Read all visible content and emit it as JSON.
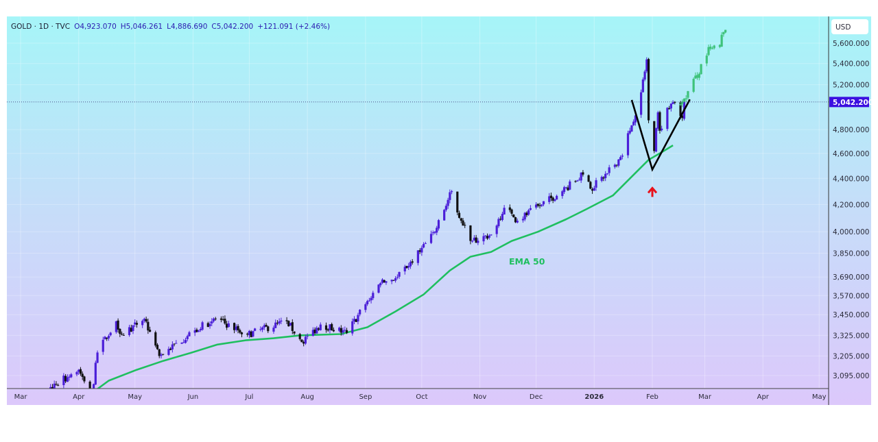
{
  "header": {
    "symbol": "GOLD · 1D · TVC",
    "open": "O4,923.070",
    "high": "H5,046.261",
    "low": "L4,886.690",
    "close": "C5,042.200",
    "change": "+121.091 (+2.46%)"
  },
  "currency_label": "USD",
  "colors": {
    "up": "#4b1fd8",
    "down": "#111111",
    "ema": "#1fbf5f",
    "projection": "#3ec27a",
    "last_price_bg": "#3b0fe0",
    "arrow": "#e8121c"
  },
  "chart_data": {
    "type": "candlestick",
    "title": "GOLD · 1D · TVC",
    "scale": "log",
    "ylim": [
      3000,
      5800
    ],
    "y_ticks": [
      "5,600.000",
      "5,400.000",
      "5,200.000",
      "4,800.000",
      "4,600.000",
      "4,400.000",
      "4,200.000",
      "4,000.000",
      "3,850.000",
      "3,690.000",
      "3,570.000",
      "3,450.000",
      "3,325.000",
      "3,205.000",
      "3,095.000"
    ],
    "y_tick_values": [
      5600,
      5400,
      5200,
      4800,
      4600,
      4400,
      4200,
      4000,
      3850,
      3690,
      3570,
      3450,
      3325,
      3205,
      3095
    ],
    "x_ticks": [
      {
        "label": "Mar",
        "date": "2025-03-01"
      },
      {
        "label": "Apr",
        "date": "2025-04-01"
      },
      {
        "label": "May",
        "date": "2025-05-01"
      },
      {
        "label": "Jun",
        "date": "2025-06-01"
      },
      {
        "label": "Jul",
        "date": "2025-07-01"
      },
      {
        "label": "Aug",
        "date": "2025-08-01"
      },
      {
        "label": "Sep",
        "date": "2025-09-01"
      },
      {
        "label": "Oct",
        "date": "2025-10-01"
      },
      {
        "label": "Nov",
        "date": "2025-11-01"
      },
      {
        "label": "Dec",
        "date": "2025-12-01"
      },
      {
        "label": "2026",
        "date": "2026-01-01"
      },
      {
        "label": "Feb",
        "date": "2026-02-01"
      },
      {
        "label": "Mar",
        "date": "2026-03-01"
      },
      {
        "label": "Apr",
        "date": "2026-04-01"
      },
      {
        "label": "May",
        "date": "2026-05-01"
      }
    ],
    "last_price": 5042.2,
    "last_price_label": "5,042.200",
    "price_closes_approx": [
      [
        "2025-03-10",
        2990
      ],
      [
        "2025-03-17",
        3032
      ],
      [
        "2025-04-01",
        3127
      ],
      [
        "2025-04-08",
        2990
      ],
      [
        "2025-04-11",
        3225
      ],
      [
        "2025-04-21",
        3410
      ],
      [
        "2025-04-24",
        3330
      ],
      [
        "2025-05-06",
        3425
      ],
      [
        "2025-05-14",
        3205
      ],
      [
        "2025-06-02",
        3355
      ],
      [
        "2025-06-13",
        3425
      ],
      [
        "2025-06-30",
        3330
      ],
      [
        "2025-07-21",
        3410
      ],
      [
        "2025-07-29",
        3285
      ],
      [
        "2025-08-08",
        3390
      ],
      [
        "2025-08-22",
        3340
      ],
      [
        "2025-09-02",
        3535
      ],
      [
        "2025-09-09",
        3650
      ],
      [
        "2025-09-18",
        3690
      ],
      [
        "2025-09-30",
        3860
      ],
      [
        "2025-10-08",
        4000
      ],
      [
        "2025-10-17",
        4300
      ],
      [
        "2025-10-22",
        4080
      ],
      [
        "2025-10-28",
        3935
      ],
      [
        "2025-11-07",
        3980
      ],
      [
        "2025-11-14",
        4175
      ],
      [
        "2025-11-21",
        4080
      ],
      [
        "2025-12-04",
        4200
      ],
      [
        "2025-12-15",
        4300
      ],
      [
        "2025-12-26",
        4430
      ],
      [
        "2025-12-30",
        4320
      ],
      [
        "2026-01-08",
        4440
      ],
      [
        "2026-01-15",
        4570
      ],
      [
        "2026-01-20",
        4790
      ],
      [
        "2026-01-26",
        5130
      ],
      [
        "2026-01-29",
        5440
      ],
      [
        "2026-01-30",
        4880
      ],
      [
        "2026-02-02",
        4620
      ],
      [
        "2026-02-04",
        4950
      ],
      [
        "2026-02-05",
        4790
      ],
      [
        "2026-02-09",
        4990
      ],
      [
        "2026-02-12",
        5040
      ],
      [
        "2026-02-17",
        4900
      ],
      [
        "2026-02-18",
        5042.2
      ]
    ],
    "ema": {
      "label": "EMA 50",
      "points": [
        [
          "2025-04-08",
          3000
        ],
        [
          "2025-04-17",
          3067
        ],
        [
          "2025-05-02",
          3127
        ],
        [
          "2025-05-16",
          3177
        ],
        [
          "2025-05-31",
          3224
        ],
        [
          "2025-06-14",
          3271
        ],
        [
          "2025-06-29",
          3296
        ],
        [
          "2025-07-14",
          3308
        ],
        [
          "2025-07-28",
          3325
        ],
        [
          "2025-08-19",
          3333
        ],
        [
          "2025-09-02",
          3374
        ],
        [
          "2025-09-17",
          3470
        ],
        [
          "2025-10-02",
          3577
        ],
        [
          "2025-10-16",
          3733
        ],
        [
          "2025-10-27",
          3826
        ],
        [
          "2025-11-07",
          3859
        ],
        [
          "2025-11-18",
          3935
        ],
        [
          "2025-12-02",
          4000
        ],
        [
          "2025-12-17",
          4090
        ],
        [
          "2025-12-28",
          4166
        ],
        [
          "2026-01-11",
          4268
        ],
        [
          "2026-01-22",
          4428
        ],
        [
          "2026-01-30",
          4548
        ],
        [
          "2026-02-06",
          4610
        ],
        [
          "2026-02-12",
          4667
        ]
      ]
    },
    "projection_approx": [
      [
        "2026-02-16",
        5020
      ],
      [
        "2026-02-22",
        5180
      ],
      [
        "2026-02-27",
        5380
      ],
      [
        "2026-03-03",
        5520
      ],
      [
        "2026-03-08",
        5550
      ],
      [
        "2026-03-12",
        5745
      ]
    ],
    "annotations": [
      {
        "type": "v-pattern",
        "points": [
          [
            "2026-01-21",
            5060
          ],
          [
            "2026-02-01",
            4470
          ],
          [
            "2026-02-21",
            5065
          ]
        ]
      },
      {
        "type": "arrow-up",
        "date": "2026-02-01",
        "price": 4330
      }
    ]
  }
}
